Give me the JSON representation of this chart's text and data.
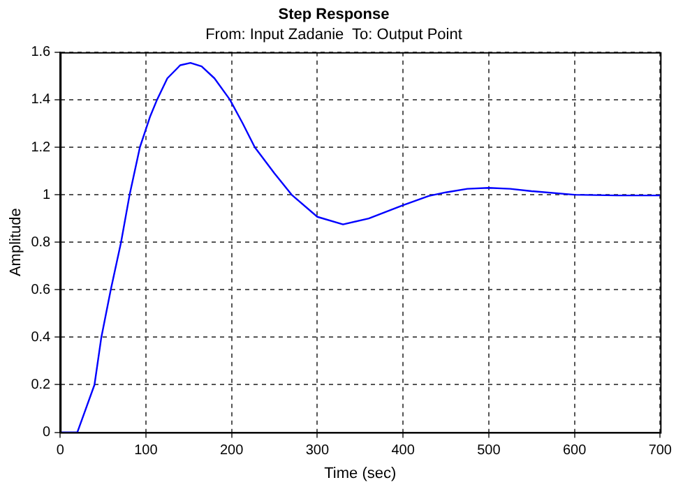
{
  "chart_data": {
    "type": "line",
    "title": "Step Response",
    "subtitle": "From: Input Zadanie  To: Output Point",
    "xlabel": "Time (sec)",
    "ylabel": "Amplitude",
    "series": [
      {
        "color": "#0000ff",
        "x": [
          0,
          20,
          30,
          40,
          48,
          59,
          71,
          81,
          93,
          105,
          113,
          125,
          140,
          152,
          165,
          180,
          198,
          213,
          227,
          250,
          270,
          300,
          330,
          360,
          400,
          430,
          450,
          475,
          500,
          525,
          550,
          600,
          650,
          700
        ],
        "values": [
          0,
          0,
          0.1,
          0.2,
          0.4,
          0.6,
          0.8,
          1.0,
          1.2,
          1.33,
          1.4,
          1.49,
          1.545,
          1.555,
          1.54,
          1.49,
          1.4,
          1.3,
          1.2,
          1.09,
          1.0,
          0.907,
          0.875,
          0.9,
          0.956,
          0.995,
          1.01,
          1.025,
          1.029,
          1.025,
          1.015,
          1.0,
          0.997,
          0.997
        ]
      }
    ],
    "xlim": [
      0,
      700
    ],
    "xticks": [
      0,
      100,
      200,
      300,
      400,
      500,
      600,
      700
    ],
    "ylim": [
      0,
      1.6
    ],
    "yticks": [
      0,
      0.2,
      0.4,
      0.6,
      0.8,
      1,
      1.2,
      1.4,
      1.6
    ],
    "grid": true,
    "legend": false,
    "marker": "none",
    "line_style": "solid"
  }
}
